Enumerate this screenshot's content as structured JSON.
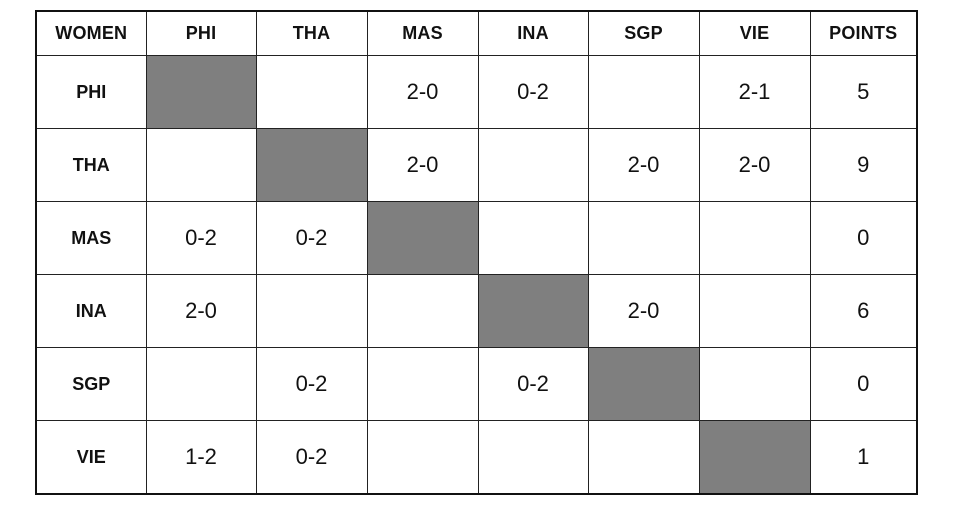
{
  "table": {
    "header": [
      "WOMEN",
      "PHI",
      "THA",
      "MAS",
      "INA",
      "SGP",
      "VIE",
      "POINTS"
    ],
    "rows": [
      {
        "team": "PHI",
        "cells": [
          "",
          "",
          "2-0",
          "0-2",
          "",
          "2-1"
        ],
        "points": "5"
      },
      {
        "team": "THA",
        "cells": [
          "",
          "",
          "2-0",
          "",
          "2-0",
          "2-0"
        ],
        "points": "9"
      },
      {
        "team": "MAS",
        "cells": [
          "0-2",
          "0-2",
          "",
          "",
          "",
          ""
        ],
        "points": "0"
      },
      {
        "team": "INA",
        "cells": [
          "2-0",
          "",
          "",
          "",
          "2-0",
          ""
        ],
        "points": "6"
      },
      {
        "team": "SGP",
        "cells": [
          "",
          "0-2",
          "",
          "0-2",
          "",
          ""
        ],
        "points": "0"
      },
      {
        "team": "VIE",
        "cells": [
          "1-2",
          "0-2",
          "",
          "",
          "",
          ""
        ],
        "points": "1"
      }
    ]
  },
  "colors": {
    "diagonal_fill": "#7f7f7f",
    "grid_line": "#222222",
    "background": "#ffffff"
  }
}
